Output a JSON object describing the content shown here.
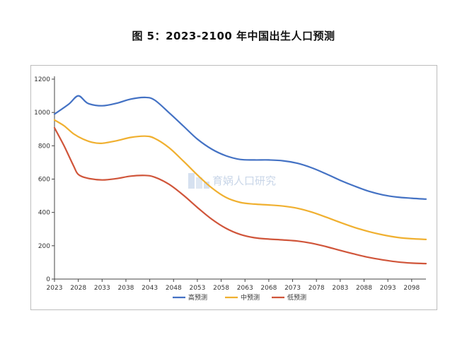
{
  "title": "图 5：2023-2100 年中国出生人口预测",
  "watermark": {
    "text": "育娲人口研究"
  },
  "colors": {
    "high": "#4472c4",
    "mid": "#f0b030",
    "low": "#d0553a",
    "axis": "#444444"
  },
  "chart_data": {
    "type": "line",
    "title": "图 5：2023-2100 年中国出生人口预测",
    "xlabel": "",
    "ylabel": "",
    "xlim": [
      2023,
      2101
    ],
    "ylim": [
      0,
      1200
    ],
    "y_ticks": [
      "0",
      "200",
      "400",
      "600",
      "800",
      "1000",
      "1200"
    ],
    "x_ticks": [
      "2023",
      "2028",
      "2033",
      "2038",
      "2043",
      "2048",
      "2053",
      "2058",
      "2063",
      "2068",
      "2073",
      "2078",
      "2083",
      "2088",
      "2093",
      "2098"
    ],
    "legend_position": "bottom",
    "grid": false,
    "series": [
      {
        "name": "高预测",
        "color": "#4472c4",
        "x": [
          2023,
          2026,
          2028,
          2030,
          2033,
          2036,
          2039,
          2042,
          2044,
          2047,
          2050,
          2053,
          2056,
          2059,
          2062,
          2065,
          2068,
          2071,
          2074,
          2077,
          2080,
          2083,
          2086,
          2089,
          2092,
          2095,
          2098,
          2101
        ],
        "values": [
          990,
          1050,
          1100,
          1055,
          1040,
          1055,
          1080,
          1090,
          1075,
          1000,
          920,
          840,
          780,
          740,
          718,
          715,
          715,
          710,
          695,
          668,
          632,
          593,
          558,
          527,
          505,
          492,
          485,
          480
        ]
      },
      {
        "name": "中预测",
        "color": "#f0b030",
        "x": [
          2023,
          2025,
          2027,
          2029,
          2031,
          2033,
          2036,
          2039,
          2042,
          2044,
          2047,
          2050,
          2053,
          2056,
          2059,
          2062,
          2065,
          2068,
          2071,
          2074,
          2077,
          2080,
          2083,
          2086,
          2089,
          2092,
          2095,
          2098,
          2101
        ],
        "values": [
          955,
          920,
          872,
          840,
          820,
          815,
          830,
          850,
          858,
          845,
          790,
          710,
          625,
          548,
          490,
          460,
          450,
          445,
          438,
          425,
          402,
          372,
          340,
          310,
          285,
          265,
          250,
          242,
          238
        ]
      },
      {
        "name": "低预测",
        "color": "#d0553a",
        "x": [
          2023,
          2025,
          2027,
          2028,
          2030,
          2033,
          2036,
          2039,
          2042,
          2044,
          2047,
          2050,
          2053,
          2056,
          2059,
          2062,
          2065,
          2068,
          2071,
          2074,
          2077,
          2080,
          2083,
          2086,
          2089,
          2092,
          2095,
          2098,
          2101
        ],
        "values": [
          908,
          800,
          680,
          628,
          605,
          595,
          603,
          618,
          622,
          612,
          570,
          505,
          430,
          360,
          305,
          268,
          248,
          240,
          235,
          228,
          215,
          195,
          172,
          150,
          130,
          115,
          103,
          96,
          93
        ]
      }
    ]
  }
}
